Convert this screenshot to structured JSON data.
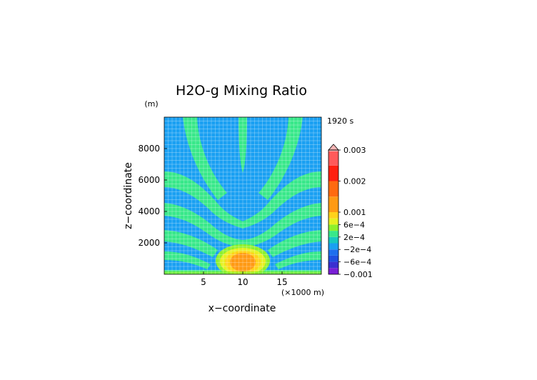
{
  "chart_data": {
    "type": "heatmap",
    "title": "H2O-g Mixing Ratio",
    "xlabel": "x−coordinate",
    "ylabel": "z−coordinate",
    "x_unit": "(×1000 m)",
    "y_unit": "(m)",
    "time_label": "1920 s",
    "xlim": [
      0,
      20
    ],
    "ylim": [
      0,
      10000
    ],
    "x_ticks": [
      5,
      10,
      15
    ],
    "x_tick_labels": [
      "5",
      "10",
      "15"
    ],
    "y_ticks": [
      2000,
      4000,
      6000,
      8000
    ],
    "y_tick_labels": [
      "2000",
      "4000",
      "6000",
      "8000"
    ],
    "grid": true,
    "colorbar": {
      "levels": [
        -0.001,
        -0.0008,
        -0.0006,
        -0.0004,
        -0.0002,
        0,
        0.0002,
        0.0004,
        0.0006,
        0.0008,
        0.001,
        0.0015,
        0.002,
        0.0025,
        0.003
      ],
      "colors": [
        "#7a1fd6",
        "#3a2fd0",
        "#1f4fe0",
        "#1e6fee",
        "#1aa0f2",
        "#17c8c0",
        "#38e88a",
        "#8ef02c",
        "#e6f022",
        "#ffd21a",
        "#ff9a14",
        "#ff6a10",
        "#ff1f10",
        "#ff5a5a",
        "#f7b5b5"
      ],
      "labels": [
        "0.003",
        "0.002",
        "0.001",
        "6e−4",
        "2e−4",
        "−2e−4",
        "−6e−4",
        "−0.001"
      ],
      "label_values": [
        0.003,
        0.002,
        0.001,
        0.0006,
        0.0002,
        -0.0002,
        -0.0006,
        -0.001
      ]
    },
    "field_description_levels": {
      "background": 0.0001,
      "plume_branches": 0.0003,
      "core_center_x": 10,
      "core_center_z": 800,
      "core_peak": 0.0012
    }
  }
}
